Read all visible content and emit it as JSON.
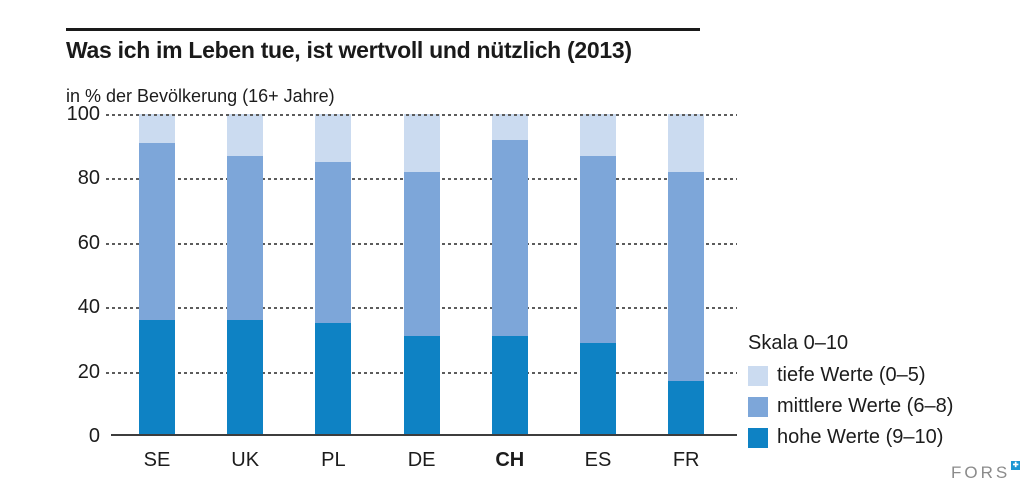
{
  "header": {
    "title": "Was ich im Leben tue, ist wertvoll und nützlich (2013)",
    "subtitle": "in % der Bevölkerung (16+ Jahre)"
  },
  "chart_data": {
    "type": "bar",
    "stacked": true,
    "title": "Was ich im Leben tue, ist wertvoll und nützlich (2013)",
    "subtitle": "in % der Bevölkerung (16+ Jahre)",
    "categories": [
      "SE",
      "UK",
      "PL",
      "DE",
      "CH",
      "ES",
      "FR"
    ],
    "emphasized_category": "CH",
    "series": [
      {
        "name": "hohe Werte (9–10)",
        "color": "#0e82c4",
        "values": [
          36,
          36,
          35,
          31,
          31,
          29,
          17
        ]
      },
      {
        "name": "mittlere Werte (6–8)",
        "color": "#7da6d9",
        "values": [
          55,
          51,
          50,
          51,
          61,
          58,
          65
        ]
      },
      {
        "name": "tiefe Werte (0–5)",
        "color": "#cbdbf0",
        "values": [
          9,
          13,
          15,
          18,
          8,
          13,
          18
        ]
      }
    ],
    "y_ticks": [
      0,
      20,
      40,
      60,
      80,
      100
    ],
    "ylim": [
      0,
      100
    ],
    "xlabel": "",
    "ylabel": "",
    "grid": "dashed-horizontal",
    "legend_position": "right"
  },
  "legend": {
    "title": "Skala 0–10",
    "items": [
      {
        "label": "tiefe Werte (0–5)",
        "color": "#cbdbf0"
      },
      {
        "label": "mittlere Werte (6–8)",
        "color": "#7da6d9"
      },
      {
        "label": "hohe Werte (9–10)",
        "color": "#0e82c4"
      }
    ]
  },
  "footer": {
    "logo_text": "FORS",
    "logo_mark": "✚"
  }
}
